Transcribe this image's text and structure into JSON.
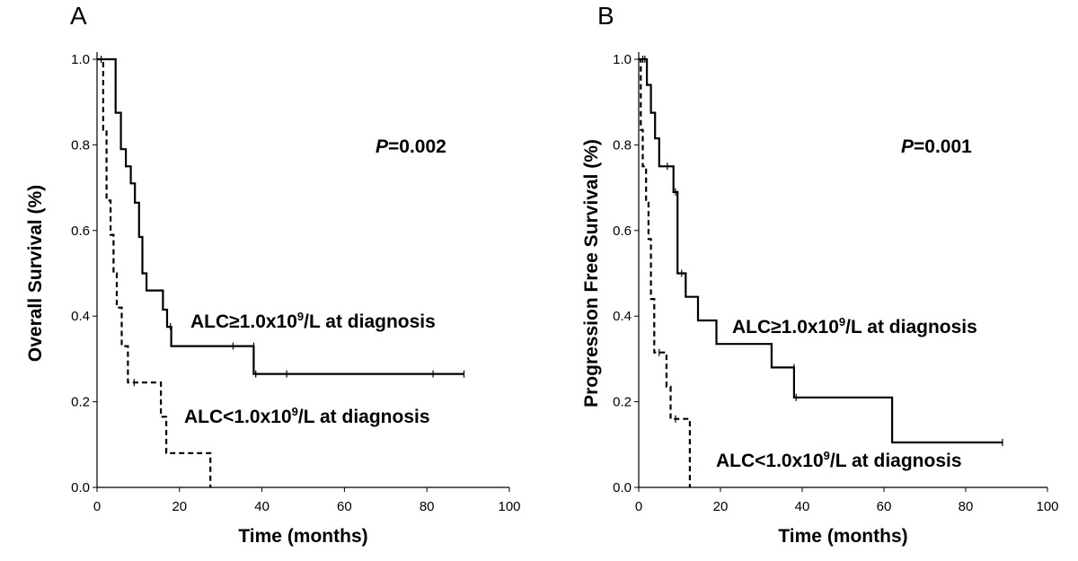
{
  "chart_data": [
    {
      "type": "line",
      "panel_label": "A",
      "xlabel": "Time (months)",
      "ylabel": "Overall Survival (%)",
      "xlim": [
        0,
        100
      ],
      "ylim": [
        0,
        1.0
      ],
      "xticks": [
        "0",
        "20",
        "40",
        "60",
        "80",
        "100"
      ],
      "yticks": [
        "0.0",
        "0.2",
        "0.4",
        "0.6",
        "0.8",
        "1.0"
      ],
      "p_value": {
        "italic": "P",
        "rest": "=0.002"
      },
      "series": [
        {
          "label": {
            "pre": "ALC≥1.0x10",
            "sup": "9",
            "post": "/L at diagnosis"
          },
          "style": "solid",
          "steps": [
            [
              0,
              1.0
            ],
            [
              4.5,
              1.0
            ],
            [
              4.5,
              0.875
            ],
            [
              5.8,
              0.875
            ],
            [
              5.8,
              0.79
            ],
            [
              7.0,
              0.79
            ],
            [
              7.0,
              0.75
            ],
            [
              8.2,
              0.75
            ],
            [
              8.2,
              0.71
            ],
            [
              9.2,
              0.71
            ],
            [
              9.2,
              0.665
            ],
            [
              10.2,
              0.665
            ],
            [
              10.2,
              0.585
            ],
            [
              11.0,
              0.585
            ],
            [
              11.0,
              0.5
            ],
            [
              12.0,
              0.5
            ],
            [
              12.0,
              0.46
            ],
            [
              16.0,
              0.46
            ],
            [
              16.0,
              0.415
            ],
            [
              17.0,
              0.415
            ],
            [
              17.0,
              0.375
            ],
            [
              18.0,
              0.375
            ],
            [
              18.0,
              0.33
            ],
            [
              38.0,
              0.33
            ],
            [
              38.0,
              0.265
            ],
            [
              89.0,
              0.265
            ]
          ],
          "censors": [
            [
              17.8,
              0.375
            ],
            [
              33.0,
              0.33
            ],
            [
              38.0,
              0.33
            ],
            [
              38.5,
              0.265
            ],
            [
              46.0,
              0.265
            ],
            [
              81.5,
              0.265
            ],
            [
              89.0,
              0.265
            ]
          ]
        },
        {
          "label": {
            "pre": "ALC<1.0x10",
            "sup": "9",
            "post": "/L at diagnosis"
          },
          "style": "dashed",
          "steps": [
            [
              0,
              1.0
            ],
            [
              1.5,
              1.0
            ],
            [
              1.5,
              0.835
            ],
            [
              2.3,
              0.835
            ],
            [
              2.3,
              0.67
            ],
            [
              3.3,
              0.67
            ],
            [
              3.3,
              0.59
            ],
            [
              4.0,
              0.59
            ],
            [
              4.0,
              0.5
            ],
            [
              4.8,
              0.5
            ],
            [
              4.8,
              0.42
            ],
            [
              6.0,
              0.42
            ],
            [
              6.0,
              0.33
            ],
            [
              7.5,
              0.33
            ],
            [
              7.5,
              0.245
            ],
            [
              15.5,
              0.245
            ],
            [
              15.5,
              0.165
            ],
            [
              16.8,
              0.165
            ],
            [
              16.8,
              0.08
            ],
            [
              27.5,
              0.08
            ],
            [
              27.5,
              0.0
            ]
          ],
          "censors": [
            [
              1.0,
              1.0
            ],
            [
              9.0,
              0.245
            ]
          ]
        }
      ]
    },
    {
      "type": "line",
      "panel_label": "B",
      "xlabel": "Time (months)",
      "ylabel": "Progression Free  Survival (%)",
      "xlim": [
        0,
        100
      ],
      "ylim": [
        0,
        1.0
      ],
      "xticks": [
        "0",
        "20",
        "40",
        "60",
        "80",
        "100"
      ],
      "yticks": [
        "0.0",
        "0.2",
        "0.4",
        "0.6",
        "0.8",
        "1.0"
      ],
      "p_value": {
        "italic": "P",
        "rest": "=0.001"
      },
      "series": [
        {
          "label": {
            "pre": "ALC≥1.0x10",
            "sup": "9",
            "post": "/L at diagnosis"
          },
          "style": "solid",
          "steps": [
            [
              0,
              1.0
            ],
            [
              2.0,
              1.0
            ],
            [
              2.0,
              0.94
            ],
            [
              3.0,
              0.94
            ],
            [
              3.0,
              0.875
            ],
            [
              4.0,
              0.875
            ],
            [
              4.0,
              0.815
            ],
            [
              5.0,
              0.815
            ],
            [
              5.0,
              0.75
            ],
            [
              8.5,
              0.75
            ],
            [
              8.5,
              0.69
            ],
            [
              9.5,
              0.69
            ],
            [
              9.5,
              0.5
            ],
            [
              11.5,
              0.5
            ],
            [
              11.5,
              0.445
            ],
            [
              14.5,
              0.445
            ],
            [
              14.5,
              0.39
            ],
            [
              19.0,
              0.39
            ],
            [
              19.0,
              0.335
            ],
            [
              32.5,
              0.335
            ],
            [
              32.5,
              0.28
            ],
            [
              38.0,
              0.28
            ],
            [
              38.0,
              0.21
            ],
            [
              62.0,
              0.21
            ],
            [
              62.0,
              0.105
            ],
            [
              89.0,
              0.105
            ]
          ],
          "censors": [
            [
              1.5,
              1.0
            ],
            [
              7.0,
              0.75
            ],
            [
              9.0,
              0.69
            ],
            [
              10.5,
              0.5
            ],
            [
              38.0,
              0.28
            ],
            [
              38.5,
              0.21
            ],
            [
              89.0,
              0.105
            ]
          ]
        },
        {
          "label": {
            "pre": "ALC<1.0x10",
            "sup": "9",
            "post": "/L at diagnosis"
          },
          "style": "dashed",
          "steps": [
            [
              0,
              1.0
            ],
            [
              0.5,
              1.0
            ],
            [
              0.5,
              0.835
            ],
            [
              1.0,
              0.835
            ],
            [
              1.0,
              0.75
            ],
            [
              1.8,
              0.75
            ],
            [
              1.8,
              0.665
            ],
            [
              2.4,
              0.665
            ],
            [
              2.4,
              0.58
            ],
            [
              3.0,
              0.58
            ],
            [
              3.0,
              0.44
            ],
            [
              3.8,
              0.44
            ],
            [
              3.8,
              0.315
            ],
            [
              6.8,
              0.315
            ],
            [
              6.8,
              0.235
            ],
            [
              7.8,
              0.235
            ],
            [
              7.8,
              0.16
            ],
            [
              12.5,
              0.16
            ],
            [
              12.5,
              0.0
            ]
          ],
          "censors": [
            [
              1.0,
              1.0
            ],
            [
              5.0,
              0.315
            ],
            [
              9.0,
              0.16
            ]
          ]
        }
      ]
    }
  ]
}
